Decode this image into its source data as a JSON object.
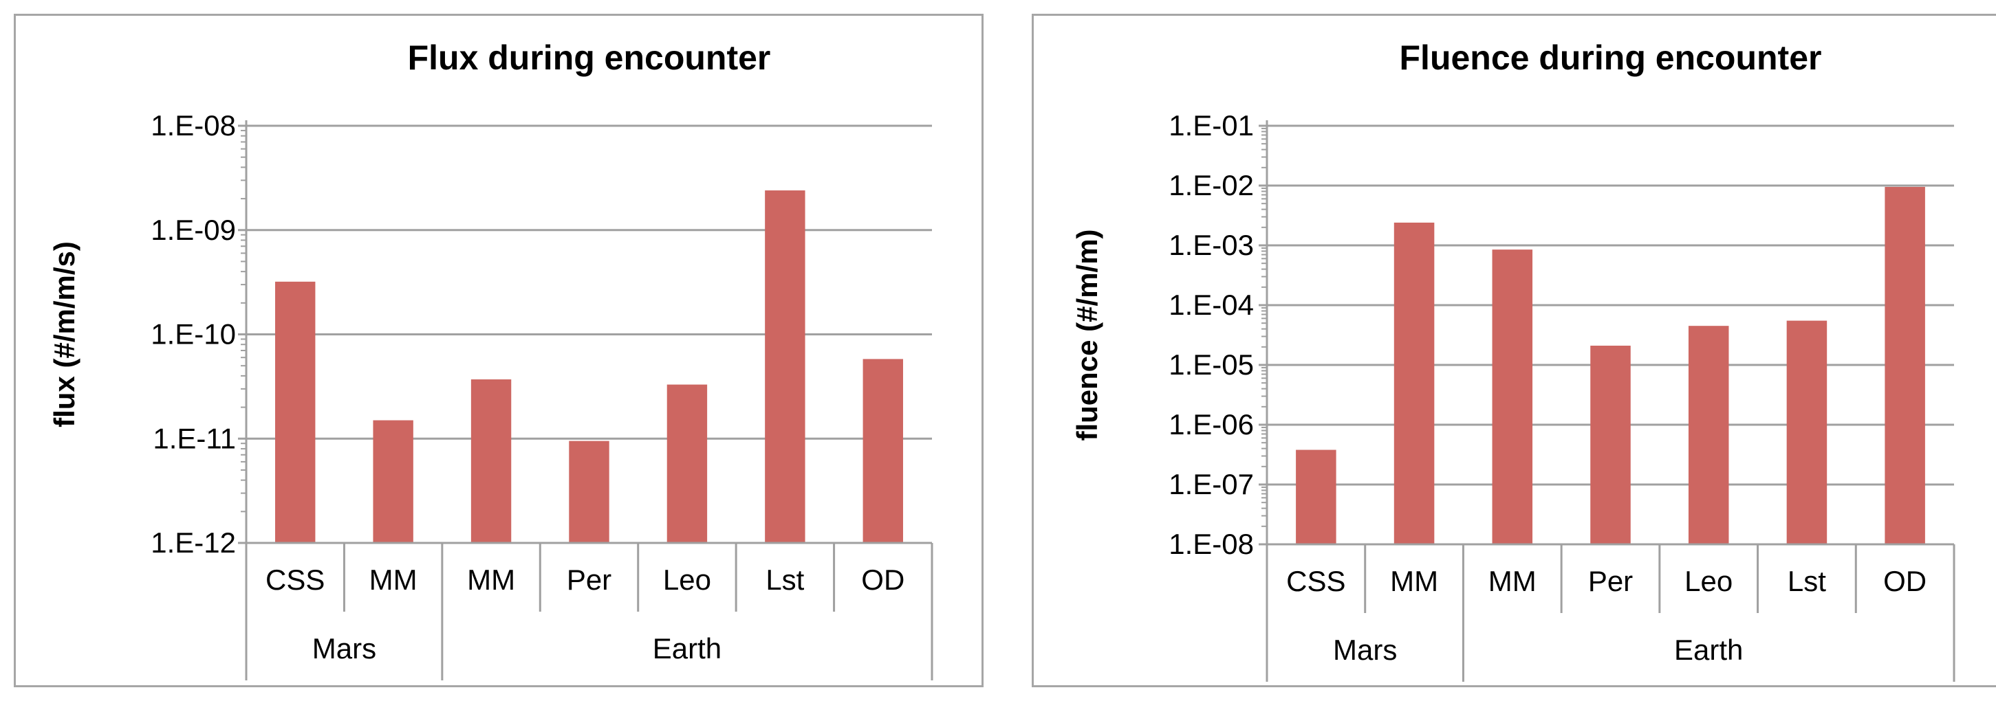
{
  "chart_data": [
    {
      "type": "bar",
      "title": "Flux during encounter",
      "xlabel": "",
      "ylabel": "flux  (#/m/m/s)",
      "yscale": "log",
      "ylim": [
        1e-12,
        1e-08
      ],
      "ytick_values": [
        1e-12,
        1e-11,
        1e-10,
        1e-09,
        1e-08
      ],
      "ytick_labels": [
        "1.E-12",
        "1.E-11",
        "1.E-10",
        "1.E-09",
        "1.E-08"
      ],
      "grid": true,
      "bar_color": "#cd6661",
      "categories": [
        "CSS",
        "MM",
        "MM",
        "Per",
        "Leo",
        "Lst",
        "OD"
      ],
      "groups": [
        {
          "label": "Mars",
          "count": 2
        },
        {
          "label": "Earth",
          "count": 5
        }
      ],
      "values": [
        3.2e-10,
        1.5e-11,
        3.7e-11,
        9.5e-12,
        3.3e-11,
        2.4e-09,
        5.8e-11
      ]
    },
    {
      "type": "bar",
      "title": "Fluence during encounter",
      "xlabel": "",
      "ylabel": "fluence  (#/m/m)",
      "yscale": "log",
      "ylim": [
        1e-08,
        0.1
      ],
      "ytick_values": [
        1e-08,
        1e-07,
        1e-06,
        1e-05,
        0.0001,
        0.001,
        0.01,
        0.1
      ],
      "ytick_labels": [
        "1.E-08",
        "1.E-07",
        "1.E-06",
        "1.E-05",
        "1.E-04",
        "1.E-03",
        "1.E-02",
        "1.E-01"
      ],
      "grid": true,
      "bar_color": "#cd6661",
      "categories": [
        "CSS",
        "MM",
        "MM",
        "Per",
        "Leo",
        "Lst",
        "OD"
      ],
      "groups": [
        {
          "label": "Mars",
          "count": 2
        },
        {
          "label": "Earth",
          "count": 5
        }
      ],
      "values": [
        3.8e-07,
        0.0024,
        0.00085,
        2.1e-05,
        4.5e-05,
        5.5e-05,
        0.0095
      ]
    }
  ]
}
